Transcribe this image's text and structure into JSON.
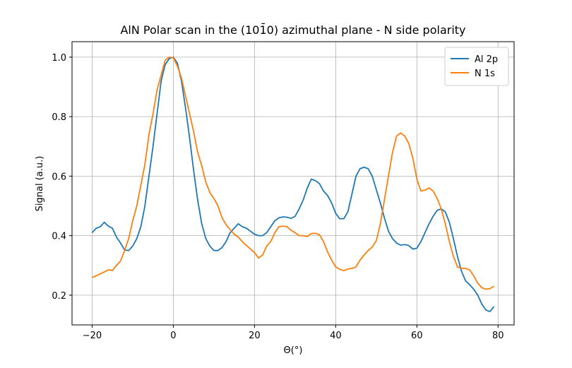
{
  "chart_data": {
    "type": "line",
    "title": "AlN Polar scan in the (101̄0) azimuthal plane - N side polarity",
    "xlabel": "Θ(°)",
    "ylabel": "Signal (a.u.)",
    "x": [
      -20,
      -19,
      -18,
      -17,
      -16,
      -15,
      -14,
      -13,
      -12,
      -11,
      -10,
      -9,
      -8,
      -7,
      -6,
      -5,
      -4,
      -3,
      -2,
      -1,
      0,
      1,
      2,
      3,
      4,
      5,
      6,
      7,
      8,
      9,
      10,
      11,
      12,
      13,
      14,
      15,
      16,
      17,
      18,
      19,
      20,
      21,
      22,
      23,
      24,
      25,
      26,
      27,
      28,
      29,
      30,
      31,
      32,
      33,
      34,
      35,
      36,
      37,
      38,
      39,
      40,
      41,
      42,
      43,
      44,
      45,
      46,
      47,
      48,
      49,
      50,
      51,
      52,
      53,
      54,
      55,
      56,
      57,
      58,
      59,
      60,
      61,
      62,
      63,
      64,
      65,
      66,
      67,
      68,
      69,
      70,
      71,
      72,
      73,
      74,
      75,
      76,
      77,
      78,
      79
    ],
    "series": [
      {
        "name": "Al 2p",
        "color": "#1f77b4",
        "values": [
          0.41,
          0.425,
          0.43,
          0.445,
          0.432,
          0.425,
          0.395,
          0.375,
          0.352,
          0.35,
          0.365,
          0.39,
          0.43,
          0.5,
          0.6,
          0.7,
          0.81,
          0.92,
          0.975,
          0.995,
          1.0,
          0.98,
          0.92,
          0.83,
          0.73,
          0.62,
          0.52,
          0.44,
          0.39,
          0.365,
          0.35,
          0.35,
          0.36,
          0.38,
          0.41,
          0.425,
          0.44,
          0.43,
          0.425,
          0.415,
          0.405,
          0.4,
          0.4,
          0.41,
          0.43,
          0.45,
          0.46,
          0.463,
          0.462,
          0.458,
          0.465,
          0.49,
          0.52,
          0.56,
          0.59,
          0.585,
          0.575,
          0.55,
          0.535,
          0.51,
          0.475,
          0.457,
          0.457,
          0.48,
          0.54,
          0.6,
          0.625,
          0.63,
          0.625,
          0.6,
          0.555,
          0.51,
          0.46,
          0.415,
          0.39,
          0.375,
          0.368,
          0.37,
          0.367,
          0.355,
          0.358,
          0.38,
          0.41,
          0.44,
          0.465,
          0.485,
          0.49,
          0.48,
          0.445,
          0.39,
          0.33,
          0.28,
          0.248,
          0.235,
          0.22,
          0.2,
          0.17,
          0.15,
          0.145,
          0.162
        ]
      },
      {
        "name": "N 1s",
        "color": "#ff7f0e",
        "values": [
          0.26,
          0.265,
          0.272,
          0.278,
          0.285,
          0.283,
          0.3,
          0.315,
          0.35,
          0.39,
          0.45,
          0.5,
          0.57,
          0.64,
          0.74,
          0.81,
          0.89,
          0.94,
          0.99,
          1.0,
          0.998,
          0.97,
          0.93,
          0.87,
          0.81,
          0.75,
          0.68,
          0.635,
          0.58,
          0.545,
          0.525,
          0.5,
          0.46,
          0.437,
          0.42,
          0.405,
          0.395,
          0.38,
          0.367,
          0.355,
          0.343,
          0.325,
          0.335,
          0.365,
          0.38,
          0.41,
          0.43,
          0.432,
          0.43,
          0.418,
          0.41,
          0.4,
          0.4,
          0.397,
          0.407,
          0.408,
          0.403,
          0.38,
          0.345,
          0.318,
          0.295,
          0.287,
          0.282,
          0.288,
          0.29,
          0.295,
          0.318,
          0.335,
          0.35,
          0.362,
          0.383,
          0.44,
          0.52,
          0.6,
          0.68,
          0.735,
          0.745,
          0.735,
          0.71,
          0.66,
          0.59,
          0.55,
          0.553,
          0.56,
          0.55,
          0.525,
          0.49,
          0.44,
          0.38,
          0.33,
          0.295,
          0.29,
          0.29,
          0.285,
          0.265,
          0.24,
          0.225,
          0.22,
          0.222,
          0.23
        ]
      }
    ],
    "xlim": [
      -24.95,
      83.95
    ],
    "ylim": [
      0.1,
      1.052
    ],
    "xticks": [
      {
        "value": -20,
        "label": "−20"
      },
      0,
      20,
      40,
      60,
      80
    ],
    "yticks": [
      0.2,
      0.4,
      0.6,
      0.8,
      {
        "value": 1,
        "label": "1.0"
      }
    ],
    "grid": true,
    "legend": "upper-right"
  }
}
